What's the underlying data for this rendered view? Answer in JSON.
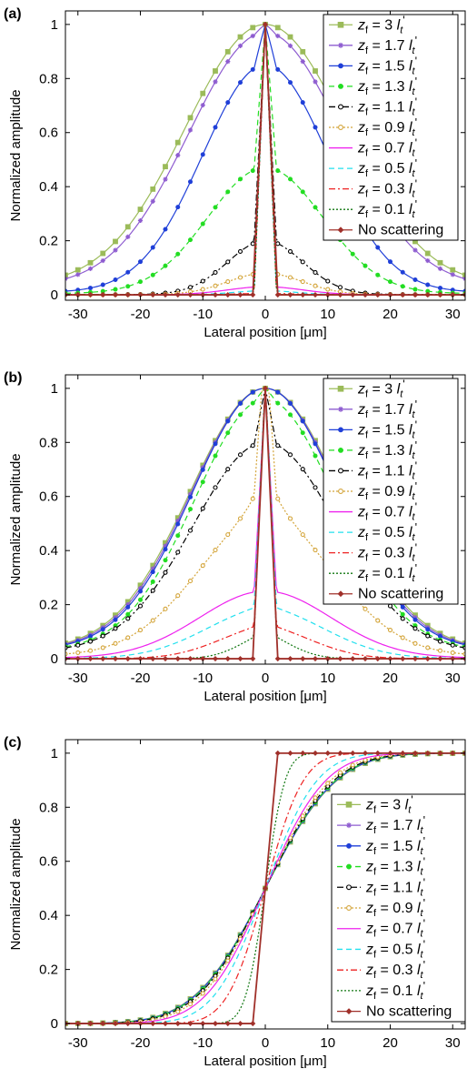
{
  "chart_data": [
    {
      "type": "line",
      "panel_label": "(a)",
      "xlabel": "Lateral position [μm]",
      "ylabel": "Normalized amplitude",
      "xlim": [
        -32,
        32
      ],
      "ylim": [
        -0.02,
        1.05
      ],
      "xticks": [
        -30,
        -20,
        -10,
        0,
        10,
        20,
        30
      ],
      "yticks": [
        0,
        0.2,
        0.4,
        0.6,
        0.8,
        1
      ],
      "ytick_labels": [
        "0",
        "0.2",
        "0.4",
        "0.6",
        "0.8",
        "1"
      ],
      "legend_position": "top-right",
      "profile": "peak",
      "series": [
        {
          "name": "zf = 3 lt'",
          "zf": "3",
          "color": "#9bbb59",
          "dash": "",
          "marker": "square",
          "width": 12.8,
          "spike": 0,
          "floor": 0.03,
          "nearA": 0,
          "nearW": 3
        },
        {
          "name": "zf = 1.7 lt'",
          "zf": "1.7",
          "color": "#8e5cd0",
          "dash": "",
          "marker": "star",
          "width": 12.2,
          "spike": 0.03,
          "floor": 0.03,
          "nearA": 0,
          "nearW": 3
        },
        {
          "name": "zf = 1.5 lt'",
          "zf": "1.5",
          "color": "#1f3fd8",
          "dash": "",
          "marker": "dot",
          "width": 10,
          "spike": 0.15,
          "floor": 0.01,
          "nearA": 0,
          "nearW": 3
        },
        {
          "name": "zf = 1.3 lt'",
          "zf": "1.3",
          "color": "#22dd22",
          "dash": "6 4",
          "marker": "dot",
          "width": 9.2,
          "spike": 0.53,
          "floor": 0.01,
          "nearA": 0,
          "nearW": 3
        },
        {
          "name": "zf = 1.1 lt'",
          "zf": "1.1",
          "color": "#000000",
          "dash": "7 3 2 3",
          "marker": "circle",
          "width": 6,
          "spike": 0.8,
          "floor": 0.005,
          "nearA": 0,
          "nearW": 3
        },
        {
          "name": "zf = 0.9 lt'",
          "zf": "0.9",
          "color": "#d4a53a",
          "dash": "2 2",
          "marker": "circle",
          "width": 6,
          "spike": 0.92,
          "floor": 0.005,
          "nearA": 0,
          "nearW": 3
        },
        {
          "name": "zf = 0.7 lt'",
          "zf": "0.7",
          "color": "#ee22ee",
          "dash": "",
          "marker": "",
          "width": 6,
          "spike": 0.97,
          "floor": 0.0,
          "nearA": 0,
          "nearW": 3
        },
        {
          "name": "zf = 0.5 lt'",
          "zf": "0.5",
          "color": "#22e0ee",
          "dash": "6 4",
          "marker": "",
          "width": 5,
          "spike": 0.985,
          "floor": 0.0,
          "nearA": 0,
          "nearW": 3
        },
        {
          "name": "zf = 0.3 lt'",
          "zf": "0.3",
          "color": "#ee2222",
          "dash": "7 3 2 3",
          "marker": "",
          "width": 5,
          "spike": 0.995,
          "floor": 0.0,
          "nearA": 0,
          "nearW": 3
        },
        {
          "name": "zf = 0.1 lt'",
          "zf": "0.1",
          "color": "#117711",
          "dash": "2 2",
          "marker": "",
          "width": 5,
          "spike": 0.998,
          "floor": 0.0,
          "nearA": 0,
          "nearW": 3
        },
        {
          "name": "No scattering",
          "zf": "",
          "color": "#a0302a",
          "dash": "",
          "marker": "diamond",
          "width": 6,
          "spike": 1,
          "floor": 0.0,
          "nearA": 0,
          "nearW": 3
        }
      ]
    },
    {
      "type": "line",
      "panel_label": "(b)",
      "xlabel": "Lateral position [μm]",
      "ylabel": "Normalized amplitude",
      "xlim": [
        -32,
        32
      ],
      "ylim": [
        -0.02,
        1.05
      ],
      "xticks": [
        -30,
        -20,
        -10,
        0,
        10,
        20,
        30
      ],
      "yticks": [
        0,
        0.2,
        0.4,
        0.6,
        0.8,
        1
      ],
      "ytick_labels": [
        "0",
        "0.2",
        "0.4",
        "0.6",
        "0.8",
        "1"
      ],
      "legend_position": "top-right",
      "profile": "peak",
      "series": [
        {
          "name": "zf = 3 lt'",
          "zf": "3",
          "color": "#9bbb59",
          "dash": "",
          "marker": "square",
          "width": 12,
          "spike": 0,
          "floor": 0.03,
          "nearA": 0,
          "nearW": 3
        },
        {
          "name": "zf = 1.7 lt'",
          "zf": "1.7",
          "color": "#8e5cd0",
          "dash": "",
          "marker": "star",
          "width": 11.8,
          "spike": 0,
          "floor": 0.03,
          "nearA": 0,
          "nearW": 3
        },
        {
          "name": "zf = 1.5 lt'",
          "zf": "1.5",
          "color": "#1f3fd8",
          "dash": "",
          "marker": "dot",
          "width": 11.6,
          "spike": 0,
          "floor": 0.03,
          "nearA": 0,
          "nearW": 3
        },
        {
          "name": "zf = 1.3 lt'",
          "zf": "1.3",
          "color": "#22dd22",
          "dash": "6 4",
          "marker": "dot",
          "width": 11.2,
          "spike": 0.04,
          "floor": 0.03,
          "nearA": 0,
          "nearW": 3
        },
        {
          "name": "zf = 1.1 lt'",
          "zf": "1.1",
          "color": "#000000",
          "dash": "7 3 2 3",
          "marker": "circle",
          "width": 11.5,
          "spike": 0.2,
          "floor": 0.03,
          "nearA": 0,
          "nearW": 3
        },
        {
          "name": "zf = 0.9 lt'",
          "zf": "0.9",
          "color": "#d4a53a",
          "dash": "2 2",
          "marker": "circle",
          "width": 11,
          "spike": 0.49,
          "floor": 0.02,
          "nearA": 0.2,
          "nearW": 2.5
        },
        {
          "name": "zf = 0.7 lt'",
          "zf": "0.7",
          "color": "#ee22ee",
          "dash": "",
          "marker": "",
          "width": 10.5,
          "spike": 0.75,
          "floor": 0.01,
          "nearA": 0,
          "nearW": 3
        },
        {
          "name": "zf = 0.5 lt'",
          "zf": "0.5",
          "color": "#22e0ee",
          "dash": "6 4",
          "marker": "",
          "width": 9.5,
          "spike": 0.82,
          "floor": 0.005,
          "nearA": 0.03,
          "nearW": 2
        },
        {
          "name": "zf = 0.3 lt'",
          "zf": "0.3",
          "color": "#ee2222",
          "dash": "7 3 2 3",
          "marker": "",
          "width": 7.5,
          "spike": 0.89,
          "floor": 0.0,
          "nearA": 0.03,
          "nearW": 2
        },
        {
          "name": "zf = 0.1 lt'",
          "zf": "0.1",
          "color": "#117711",
          "dash": "2 2",
          "marker": "",
          "width": 4.5,
          "spike": 0.93,
          "floor": 0.0,
          "nearA": 0.04,
          "nearW": 2
        },
        {
          "name": "No scattering",
          "zf": "",
          "color": "#a0302a",
          "dash": "",
          "marker": "diamond",
          "width": 6,
          "spike": 1,
          "floor": 0.0,
          "nearA": 0,
          "nearW": 3
        }
      ]
    },
    {
      "type": "line",
      "panel_label": "(c)",
      "xlabel": "Lateral position [μm]",
      "ylabel": "Normalized amplitude",
      "xlim": [
        -32,
        32
      ],
      "ylim": [
        -0.02,
        1.05
      ],
      "xticks": [
        -30,
        -20,
        -10,
        0,
        10,
        20,
        30
      ],
      "yticks": [
        0,
        0.2,
        0.4,
        0.6,
        0.8,
        1
      ],
      "ytick_labels": [
        "0",
        "0.2",
        "0.4",
        "0.6",
        "0.8",
        "1"
      ],
      "legend_position": "bottom-right",
      "profile": "edge",
      "series": [
        {
          "name": "zf = 3 lt'",
          "zf": "3",
          "color": "#9bbb59",
          "dash": "",
          "marker": "square",
          "scale": 9.0
        },
        {
          "name": "zf = 1.7 lt'",
          "zf": "1.7",
          "color": "#8e5cd0",
          "dash": "",
          "marker": "star",
          "scale": 8.9
        },
        {
          "name": "zf = 1.5 lt'",
          "zf": "1.5",
          "color": "#1f3fd8",
          "dash": "",
          "marker": "dot",
          "scale": 8.9
        },
        {
          "name": "zf = 1.3 lt'",
          "zf": "1.3",
          "color": "#22dd22",
          "dash": "6 4",
          "marker": "dot",
          "scale": 8.8
        },
        {
          "name": "zf = 1.1 lt'",
          "zf": "1.1",
          "color": "#000000",
          "dash": "7 3 2 3",
          "marker": "circle",
          "scale": 8.6
        },
        {
          "name": "zf = 0.9 lt'",
          "zf": "0.9",
          "color": "#d4a53a",
          "dash": "2 2",
          "marker": "circle",
          "scale": 8.2
        },
        {
          "name": "zf = 0.7 lt'",
          "zf": "0.7",
          "color": "#ee22ee",
          "dash": "",
          "marker": "",
          "scale": 7.6
        },
        {
          "name": "zf = 0.5 lt'",
          "zf": "0.5",
          "color": "#22e0ee",
          "dash": "6 4",
          "marker": "",
          "scale": 6.5
        },
        {
          "name": "zf = 0.3 lt'",
          "zf": "0.3",
          "color": "#ee2222",
          "dash": "7 3 2 3",
          "marker": "",
          "scale": 4.8
        },
        {
          "name": "zf = 0.1 lt'",
          "zf": "0.1",
          "color": "#117711",
          "dash": "2 2",
          "marker": "",
          "scale": 2.5
        },
        {
          "name": "No scattering",
          "zf": "",
          "color": "#a0302a",
          "dash": "",
          "marker": "diamond",
          "scale": 0
        }
      ]
    }
  ]
}
